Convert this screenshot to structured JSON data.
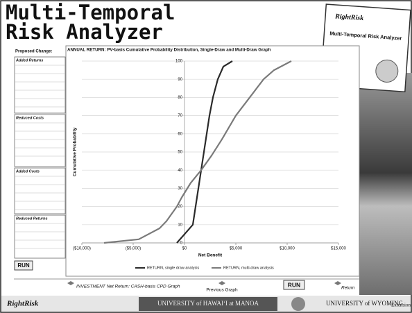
{
  "header": {
    "title_lines": [
      "Multi-Temporal",
      "Risk Analyzer"
    ]
  },
  "logo_card": {
    "brand": "RightRisk",
    "subtitle": "Multi-Temporal Risk Analyzer"
  },
  "left_panel": {
    "heading": "Proposed Change:",
    "sections": [
      "Added Returns",
      "Reduced Costs",
      "Added Costs",
      "Reduced Returns"
    ],
    "button": "RUN"
  },
  "chart_data": {
    "type": "line",
    "title": "ANNUAL RETURN: PV-basis Cumulative Probability Distribution, Single-Draw and Multi-Draw Graph",
    "x_label": "Net Benefit",
    "y_label": "Cumulative Probability",
    "xlim": [
      -10000,
      15000
    ],
    "xticks": [
      {
        "value": -10000,
        "label": "($10,000)"
      },
      {
        "value": -5000,
        "label": "($5,000)"
      },
      {
        "value": 0,
        "label": "$0"
      },
      {
        "value": 5000,
        "label": "$5,000"
      },
      {
        "value": 10000,
        "label": "$10,000"
      },
      {
        "value": 15000,
        "label": "$15,000"
      }
    ],
    "ylim": [
      0,
      100
    ],
    "yticks": [
      0,
      10,
      20,
      30,
      40,
      50,
      60,
      70,
      80,
      90,
      100
    ],
    "grid": true,
    "legend": "bottom",
    "series": [
      {
        "name": "RETURN, single draw analysis",
        "color": "#2a2a2a",
        "x": [
          -743,
          811,
          1081,
          1351,
          1622,
          1892,
          2162,
          2432,
          2770,
          3243,
          3784,
          4662
        ],
        "values": [
          0,
          10,
          20,
          30,
          40,
          50,
          60,
          70,
          80,
          90,
          97,
          100
        ]
      },
      {
        "name": "RETURN, multi-draw analysis",
        "color": "#7a7a7a",
        "x": [
          -7838,
          -4459,
          -2432,
          -1757,
          -743,
          -270,
          608,
          1622,
          2635,
          3649,
          5000,
          6351,
          7703,
          8716,
          10405
        ],
        "values": [
          0,
          2,
          8,
          12,
          20,
          25,
          33,
          40,
          48,
          57,
          70,
          80,
          90,
          95,
          100
        ]
      }
    ]
  },
  "bottom_bar": {
    "cash_graph": "INVESTMENT Net Return: CASH-basis CPD Graph",
    "previous": "Previous Graph",
    "run": "RUN",
    "return": "Return"
  },
  "footer": {
    "brand": "RightRisk",
    "hawaii": "UNIVERSITY of HAWAI‘I at MANOA",
    "wyoming": "UNIVERSITY of WYOMING",
    "extension": "Extension"
  }
}
